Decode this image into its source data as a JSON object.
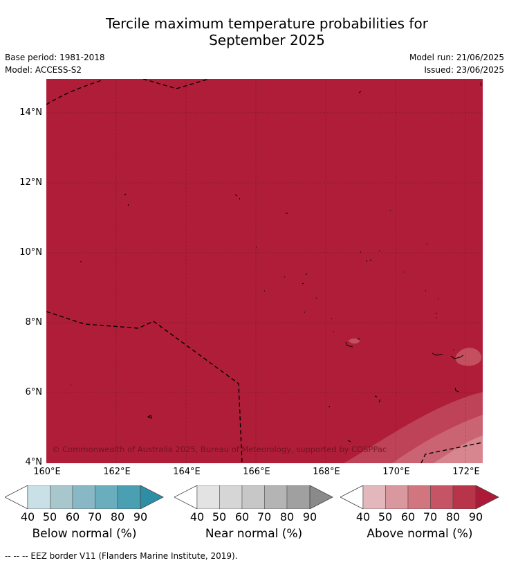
{
  "title_line1": "Tercile maximum temperature probabilities for",
  "title_line2": "September 2025",
  "base_period": "Base period: 1981-2018",
  "model": "Model: ACCESS-S2",
  "model_run": "Model run: 21/06/2025",
  "issued": "Issued: 23/06/2025",
  "y_ticks": [
    "14°N",
    "12°N",
    "10°N",
    "8°N",
    "6°N",
    "4°N"
  ],
  "x_ticks": [
    "160°E",
    "162°E",
    "164°E",
    "166°E",
    "168°E",
    "170°E",
    "172°E"
  ],
  "copyright": "© Commonwealth of Australia 2025, Bureau of Meteorology, supported by COSPPac",
  "colorbars": [
    {
      "label": "Below normal (%)",
      "ticks": [
        "40",
        "50",
        "60",
        "70",
        "80",
        "90"
      ],
      "colors": [
        "#ffffff",
        "#c8e0e6",
        "#a7c7cd",
        "#88b8c5",
        "#6aadbd",
        "#4a9fb2",
        "#2d8fa5"
      ]
    },
    {
      "label": "Near normal (%)",
      "ticks": [
        "40",
        "50",
        "60",
        "70",
        "80",
        "90"
      ],
      "colors": [
        "#ffffff",
        "#e3e3e3",
        "#d6d6d6",
        "#c7c7c7",
        "#b4b4b4",
        "#a0a0a0",
        "#8a8a8a"
      ]
    },
    {
      "label": "Above normal (%)",
      "ticks": [
        "40",
        "50",
        "60",
        "70",
        "80",
        "90"
      ],
      "colors": [
        "#ffffff",
        "#e3b8bd",
        "#d9979e",
        "#d1767f",
        "#c55564",
        "#b83448",
        "#ad1a38"
      ]
    }
  ],
  "footnote": "-- -- -- EEZ border V11 (Flanders Marine Institute, 2019).",
  "colors": {
    "above_90": "#b01d38",
    "above_80": "#c04659",
    "above_70": "#cd6b78",
    "above_60": "#d98d97"
  }
}
